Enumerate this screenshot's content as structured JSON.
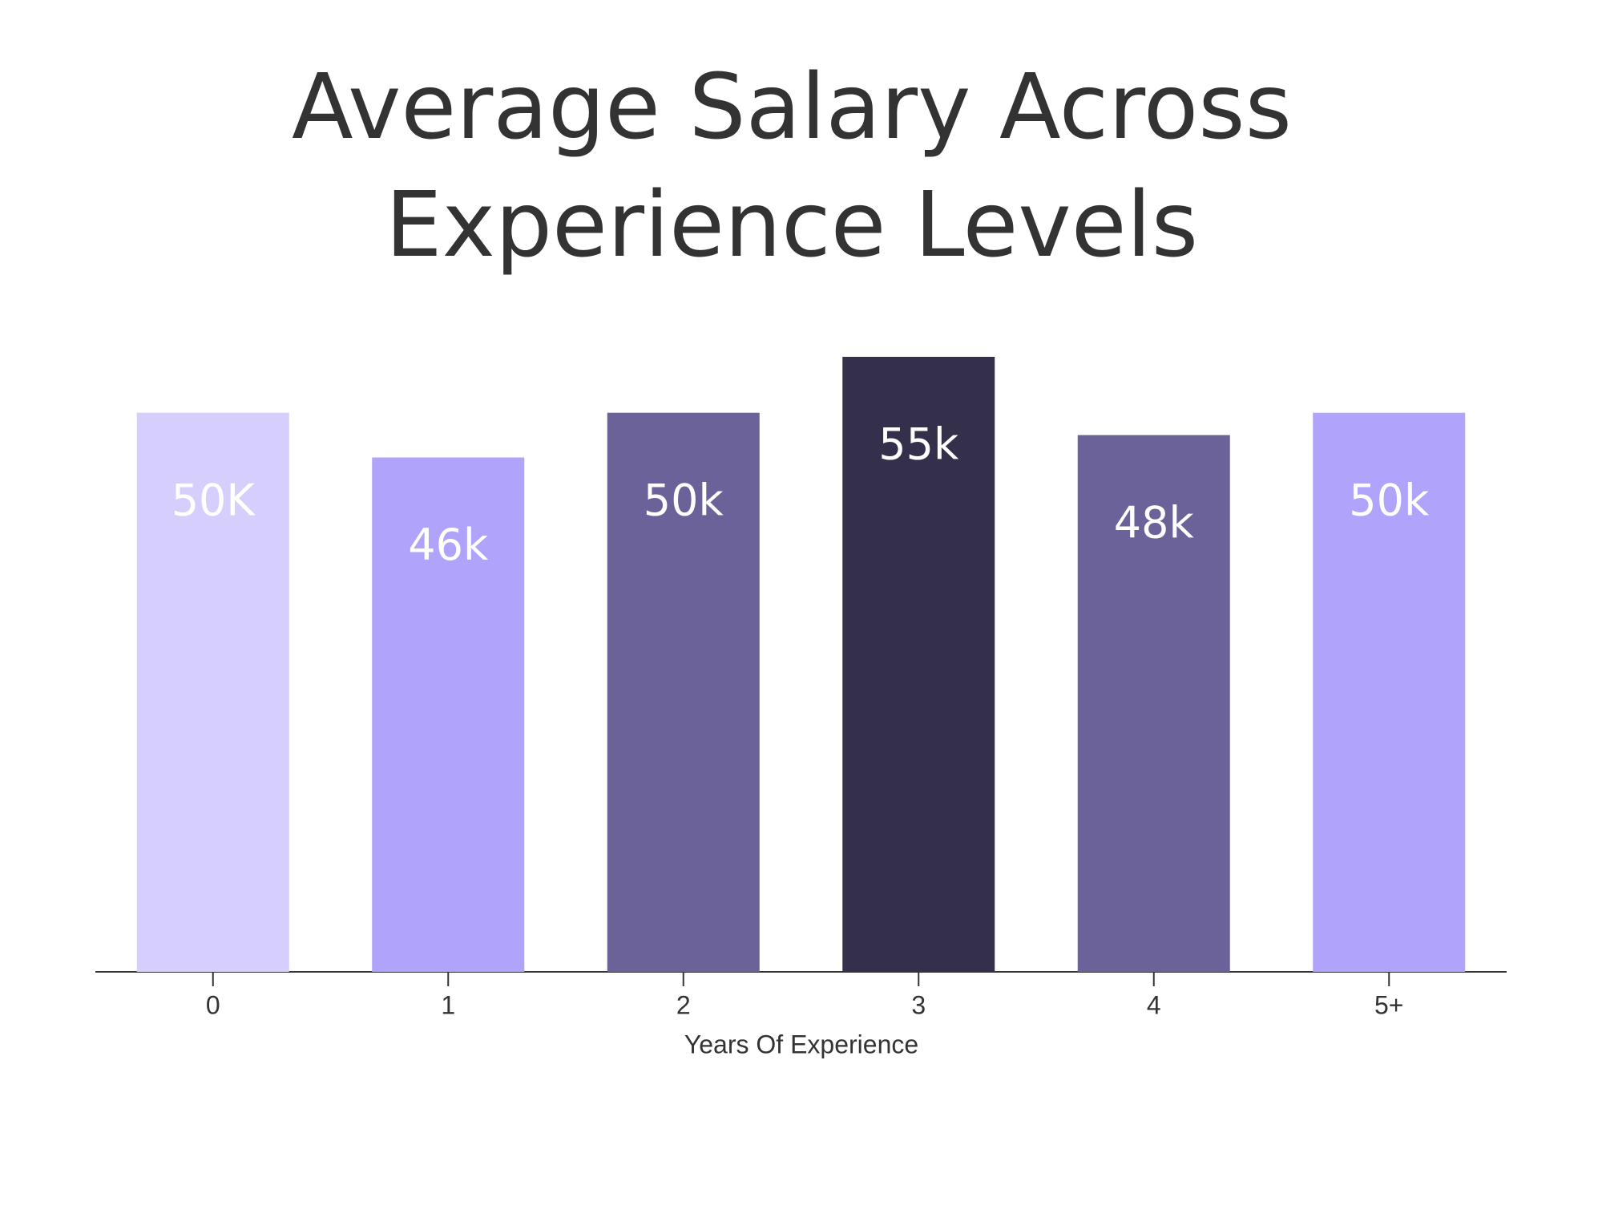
{
  "chart_data": {
    "type": "bar",
    "title": [
      "Average Salary Across",
      "Experience Levels"
    ],
    "x_label": "Years Of Experience",
    "categories": [
      "0",
      "1",
      "2",
      "3",
      "4",
      "5+"
    ],
    "values": [
      50,
      46,
      50,
      55,
      48,
      50
    ],
    "value_labels": [
      "50K",
      "46k",
      "50k",
      "55k",
      "48k",
      "50k"
    ],
    "colors": [
      "#d6cffd",
      "#afa3fb",
      "#6a6298",
      "#34304c",
      "#6a6298",
      "#afa3fb"
    ]
  }
}
